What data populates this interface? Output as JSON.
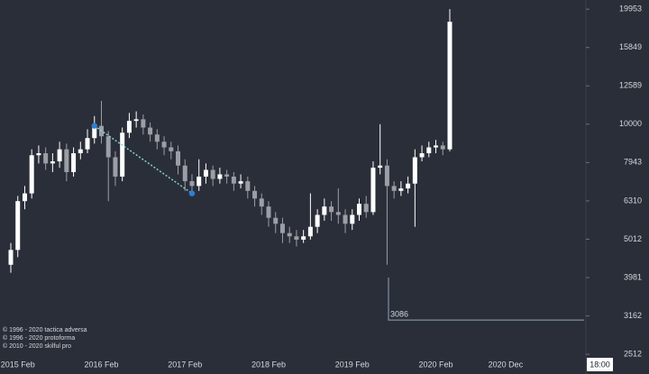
{
  "chart_data": {
    "type": "candlestick",
    "log_scale": true,
    "grid": false,
    "up_color": "#ffffff",
    "down_color": "#9c9ea6",
    "categories": [
      null,
      "2015 Feb",
      null,
      null,
      null,
      null,
      null,
      null,
      null,
      null,
      null,
      null,
      null,
      "2016 Feb",
      null,
      null,
      null,
      null,
      null,
      null,
      null,
      null,
      null,
      null,
      null,
      "2017 Feb",
      null,
      null,
      null,
      null,
      null,
      null,
      null,
      null,
      null,
      null,
      null,
      "2018 Feb",
      null,
      null,
      null,
      null,
      null,
      null,
      null,
      null,
      null,
      null,
      null,
      "2019 Feb",
      null,
      null,
      null,
      null,
      null,
      null,
      null,
      null,
      null,
      null,
      null,
      "2020 Feb",
      null,
      null,
      null,
      null,
      null,
      null,
      null,
      null,
      null,
      "2020 Dec"
    ],
    "open": [
      4300,
      4700,
      6300,
      6600,
      8300,
      8400,
      7900,
      8000,
      8600,
      7500,
      8400,
      8600,
      9200,
      9900,
      9300,
      8200,
      7300,
      9500,
      10200,
      10300,
      9800,
      9400,
      9000,
      8700,
      8500,
      7800,
      7100,
      6900,
      7300,
      7600,
      7200,
      7400,
      7300,
      7000,
      7100,
      6700,
      6400,
      6100,
      5700,
      5500,
      5200,
      5100,
      5000,
      5100,
      5400,
      5800,
      6100,
      5900,
      5800,
      5500,
      5800,
      6200,
      5900,
      7700,
      7800,
      6900,
      6700,
      6800,
      7000,
      8200,
      8400,
      8700,
      8800,
      8600,
      null,
      null,
      null,
      null,
      null,
      null,
      null,
      null
    ],
    "high": [
      4900,
      6500,
      6900,
      8600,
      8800,
      8700,
      8400,
      9000,
      8900,
      8700,
      9000,
      9700,
      10500,
      11500,
      9600,
      8500,
      9800,
      10700,
      10800,
      10600,
      10100,
      9700,
      9300,
      9000,
      8800,
      8100,
      7400,
      8100,
      7900,
      7800,
      7700,
      7600,
      7500,
      7400,
      7300,
      6900,
      6600,
      6300,
      5900,
      5700,
      5400,
      5300,
      5300,
      6600,
      6000,
      6400,
      6300,
      6800,
      6000,
      6000,
      6400,
      6500,
      8000,
      10000,
      8100,
      7100,
      7100,
      7300,
      8600,
      8800,
      9000,
      9100,
      9000,
      19953,
      null,
      null,
      null,
      null,
      null,
      null,
      null,
      null
    ],
    "low": [
      4100,
      4500,
      6000,
      6400,
      7900,
      7600,
      7500,
      7700,
      7100,
      7300,
      8100,
      8400,
      8900,
      8900,
      6300,
      6900,
      7100,
      9200,
      9800,
      9400,
      9000,
      8600,
      8300,
      8100,
      7400,
      6700,
      6500,
      6700,
      7000,
      6900,
      7000,
      7000,
      6700,
      6800,
      6400,
      6100,
      5800,
      5400,
      5200,
      4900,
      4900,
      4800,
      4900,
      5000,
      5200,
      5600,
      5600,
      5500,
      5200,
      5300,
      5600,
      5700,
      5800,
      7400,
      4300,
      6400,
      6500,
      6600,
      5400,
      8000,
      8200,
      8400,
      8300,
      8500,
      null,
      null,
      null,
      null,
      null,
      null,
      null,
      null
    ],
    "close": [
      4700,
      6300,
      6600,
      8300,
      8400,
      7900,
      8000,
      8600,
      7500,
      8400,
      8600,
      9200,
      9900,
      9300,
      8200,
      7300,
      9500,
      10200,
      10300,
      9800,
      9400,
      9000,
      8700,
      8500,
      7800,
      7100,
      6900,
      7300,
      7600,
      7200,
      7400,
      7300,
      7000,
      7100,
      6700,
      6400,
      6100,
      5700,
      5500,
      5200,
      5100,
      5000,
      5100,
      5400,
      5800,
      6100,
      5900,
      5800,
      5500,
      5800,
      6200,
      5900,
      7700,
      7800,
      6900,
      6700,
      6800,
      7000,
      8200,
      8400,
      8700,
      8800,
      8600,
      18500,
      null,
      null,
      null,
      null,
      null,
      null,
      null,
      null
    ],
    "ylim": [
      2420,
      21080
    ],
    "yticks": [
      2512,
      3162,
      3981,
      5012,
      6310,
      7943,
      10000,
      12589,
      15849,
      19953
    ],
    "trend_line": {
      "color": "#2f7fd6",
      "points": [
        {
          "index": 12,
          "value": 9900
        },
        {
          "index": 26,
          "value": 6600
        }
      ]
    },
    "price_marker": 3086,
    "footnotes": [
      "© 1996 - 2020 tactica adversa",
      "© 1996 - 2020 protoforma",
      "© 2010 - 2020 skilful pro"
    ],
    "clock": "18:00"
  }
}
